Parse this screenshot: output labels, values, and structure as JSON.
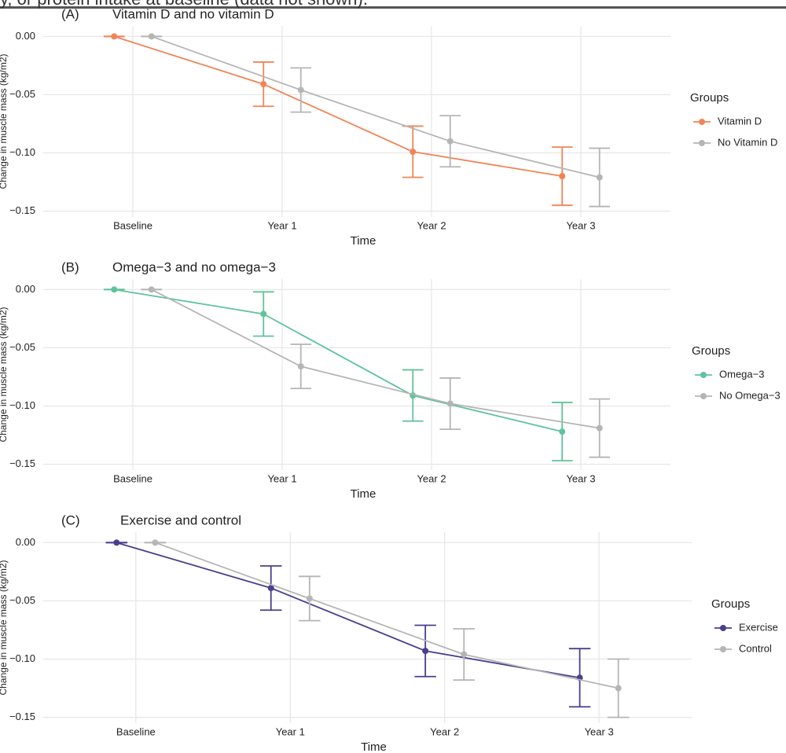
{
  "caption_fragment": "y, or protein intake at baseline (data not shown).",
  "chart_data": [
    {
      "type": "line",
      "tag": "(A)",
      "title": "Vitamin D and no vitamin D",
      "x_label": "Time",
      "y_label": "Change in muscle mass (kg/m2)",
      "legend_title": "Groups",
      "legend": "right",
      "grid": true,
      "categories": [
        "Baseline",
        "Year 1",
        "Year 2",
        "Year 3"
      ],
      "series": [
        {
          "name": "Vitamin D",
          "color": "#f08457",
          "values": [
            0,
            -0.041,
            -0.099,
            -0.12
          ],
          "errors": [
            0,
            0.019,
            0.022,
            0.025
          ]
        },
        {
          "name": "No Vitamin D",
          "color": "#b5b5b5",
          "values": [
            0,
            -0.046,
            -0.09,
            -0.121
          ],
          "errors": [
            0,
            0.019,
            0.022,
            0.025
          ]
        }
      ],
      "ylim": [
        -0.155,
        0.009
      ],
      "yticks": [
        {
          "value": 0,
          "label": "0.00"
        },
        {
          "value": -0.05,
          "label": "−0.05"
        },
        {
          "value": -0.1,
          "label": "−0.10"
        },
        {
          "value": -0.15,
          "label": "−0.15"
        }
      ]
    },
    {
      "type": "line",
      "tag": "(B)",
      "title": "Omega−3 and no omega−3",
      "x_label": "Time",
      "y_label": "Change in muscle mass (kg/m2)",
      "legend_title": "Groups",
      "legend": "right",
      "grid": true,
      "categories": [
        "Baseline",
        "Year 1",
        "Year 2",
        "Year 3"
      ],
      "series": [
        {
          "name": "Omega−3",
          "color": "#5fc39d",
          "values": [
            0,
            -0.021,
            -0.091,
            -0.122
          ],
          "errors": [
            0,
            0.019,
            0.022,
            0.025
          ]
        },
        {
          "name": "No Omega−3",
          "color": "#b5b5b5",
          "values": [
            0,
            -0.066,
            -0.098,
            -0.119
          ],
          "errors": [
            0,
            0.019,
            0.022,
            0.025
          ]
        }
      ],
      "ylim": [
        -0.155,
        0.009
      ],
      "yticks": [
        {
          "value": 0,
          "label": "0.00"
        },
        {
          "value": -0.05,
          "label": "−0.05"
        },
        {
          "value": -0.1,
          "label": "−0.10"
        },
        {
          "value": -0.15,
          "label": "−0.15"
        }
      ]
    },
    {
      "type": "line",
      "tag": "(C)",
      "title": "Exercise and control",
      "x_label": "Time",
      "y_label": "Change in muscle mass (kg/m2)",
      "legend_title": "Groups",
      "legend": "right",
      "grid": true,
      "categories": [
        "Baseline",
        "Year 1",
        "Year 2",
        "Year 3"
      ],
      "series": [
        {
          "name": "Exercise",
          "color": "#4a3f8e",
          "values": [
            0,
            -0.039,
            -0.093,
            -0.116
          ],
          "errors": [
            0,
            0.019,
            0.022,
            0.025
          ]
        },
        {
          "name": "Control",
          "color": "#b5b5b5",
          "values": [
            0,
            -0.048,
            -0.096,
            -0.125
          ],
          "errors": [
            0,
            0.019,
            0.022,
            0.025
          ]
        }
      ],
      "ylim": [
        -0.155,
        0.009
      ],
      "yticks": [
        {
          "value": 0,
          "label": "0.00"
        },
        {
          "value": -0.05,
          "label": "−0.05"
        },
        {
          "value": -0.1,
          "label": "−0.10"
        },
        {
          "value": -0.15,
          "label": "−0.15"
        }
      ]
    }
  ]
}
